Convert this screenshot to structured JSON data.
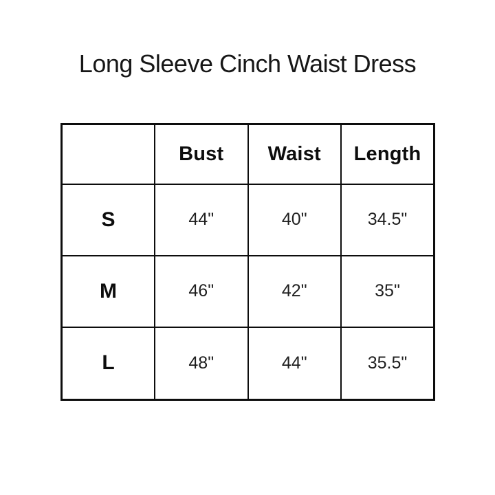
{
  "page": {
    "title": "Long Sleeve Cinch Waist Dress"
  },
  "chart_data": {
    "type": "table",
    "title": "Long Sleeve Cinch Waist Dress",
    "columns": [
      "",
      "Bust",
      "Waist",
      "Length"
    ],
    "rows": [
      {
        "size": "S",
        "bust": "44\"",
        "waist": "40\"",
        "length": "34.5\""
      },
      {
        "size": "M",
        "bust": "46\"",
        "waist": "42\"",
        "length": "35\""
      },
      {
        "size": "L",
        "bust": "48\"",
        "waist": "44\"",
        "length": "35.5\""
      }
    ],
    "layout": {
      "header_bold": true,
      "size_column_bold": true,
      "grid": "on",
      "border_color": "#0d0d0d",
      "background_color": "#ffffff"
    }
  }
}
